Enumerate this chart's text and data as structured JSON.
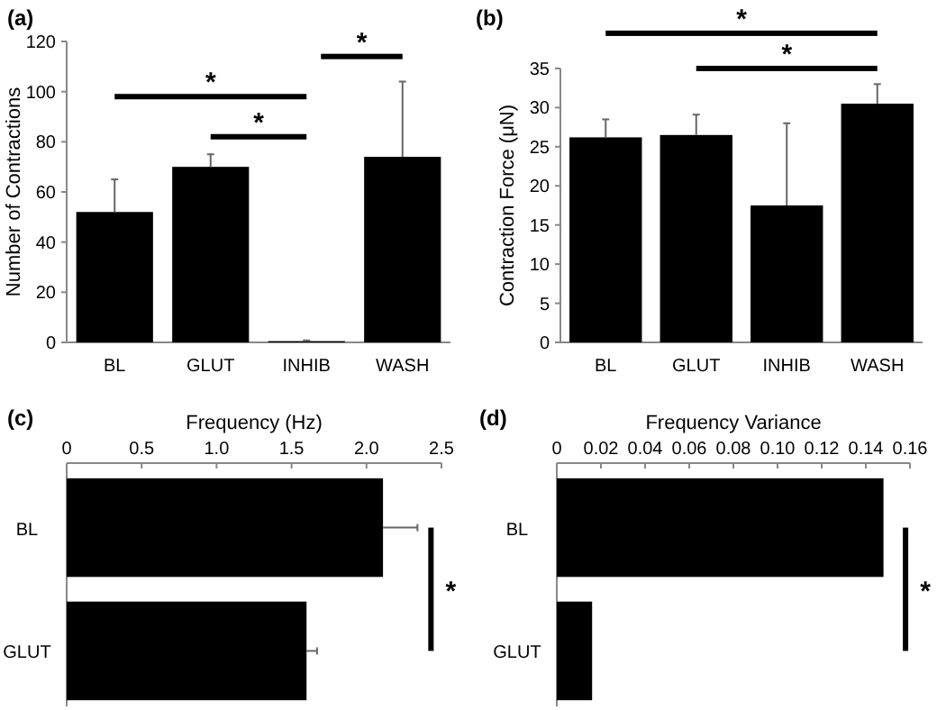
{
  "chart_data": [
    {
      "type": "bar",
      "title": "(a)",
      "ylabel": "Number of Contractions",
      "categories": [
        "BL",
        "GLUT",
        "INHIB",
        "WASH"
      ],
      "values": [
        52,
        70,
        0.5,
        74
      ],
      "errors": [
        [
          52,
          65
        ],
        [
          70,
          75
        ],
        [
          0.5,
          0.8
        ],
        [
          74,
          104
        ]
      ],
      "color": "#000000",
      "ylim": [
        0,
        120
      ],
      "yticks": [
        0,
        20,
        40,
        60,
        80,
        100,
        120
      ],
      "grid": false,
      "annotations": [
        "*",
        "*",
        "*"
      ]
    },
    {
      "type": "bar",
      "title": "(b)",
      "ylabel": "Contraction Force (μN)",
      "categories": [
        "BL",
        "GLUT",
        "INHIB",
        "WASH"
      ],
      "values": [
        26.2,
        26.5,
        17.5,
        30.5
      ],
      "errors": [
        [
          26.2,
          28.5
        ],
        [
          26.5,
          29.1
        ],
        [
          17.5,
          28
        ],
        [
          30.5,
          33
        ]
      ],
      "color": "#000000",
      "ylim": [
        0,
        35
      ],
      "yticks": [
        0,
        5,
        10,
        15,
        20,
        25,
        30,
        35
      ],
      "grid": false,
      "annotations": [
        "*",
        "*"
      ]
    },
    {
      "type": "bar",
      "orientation": "horizontal",
      "title": "(c)",
      "xlabel": "Frequency (Hz)",
      "categories": [
        "BL",
        "GLUT"
      ],
      "values": [
        2.11,
        1.6
      ],
      "errors": [
        [
          2.11,
          2.34
        ],
        [
          1.6,
          1.67
        ]
      ],
      "color": "#000000",
      "xlim": [
        0,
        2.5
      ],
      "xticks": [
        0,
        0.5,
        {
          "value": 1,
          "label": "1.0"
        },
        {
          "value": 1.5,
          "label": "1.5"
        },
        {
          "value": 2,
          "label": "2.0"
        },
        2.5
      ],
      "grid": false,
      "annotations": [
        "*"
      ]
    },
    {
      "type": "bar",
      "orientation": "horizontal",
      "title": "(d)",
      "xlabel": "Frequency Variance",
      "categories": [
        "BL",
        "GLUT"
      ],
      "values": [
        0.148,
        0.016
      ],
      "color": "#000000",
      "xlim": [
        0,
        0.16
      ],
      "xticks": [
        0,
        0.02,
        0.04,
        0.06,
        0.08,
        {
          "value": 0.1,
          "label": "0.10"
        },
        0.12,
        0.14,
        0.16
      ],
      "grid": false,
      "annotations": [
        "*"
      ]
    }
  ]
}
